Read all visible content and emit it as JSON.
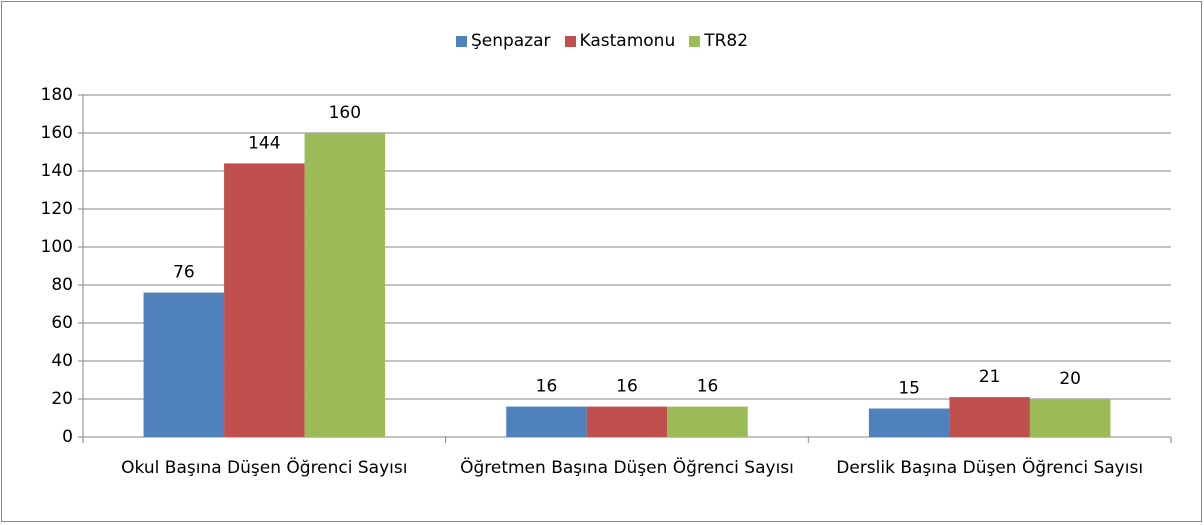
{
  "chart_data": {
    "type": "bar",
    "categories": [
      "Okul Başına Düşen Öğrenci Sayısı",
      "Öğretmen Başına Düşen Öğrenci Sayısı",
      "Derslik Başına Düşen Öğrenci Sayısı"
    ],
    "series": [
      {
        "name": "Şenpazar",
        "color": "#4f81bd",
        "values": [
          76,
          16,
          15
        ]
      },
      {
        "name": "Kastamonu",
        "color": "#c0504d",
        "values": [
          144,
          16,
          21
        ]
      },
      {
        "name": "TR82",
        "color": "#9bbb59",
        "values": [
          160,
          16,
          20
        ]
      }
    ],
    "ylim": [
      0,
      180
    ],
    "yticks": [
      0,
      20,
      40,
      60,
      80,
      100,
      120,
      140,
      160,
      180
    ],
    "grid": true,
    "legend": "top"
  }
}
